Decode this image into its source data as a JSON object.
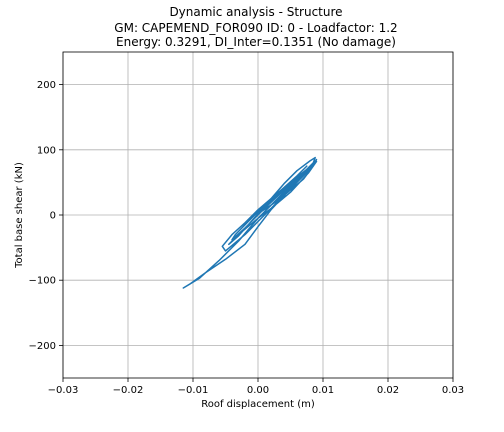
{
  "chart_data": {
    "type": "line",
    "title_lines": [
      "Dynamic analysis - Structure",
      "GM: CAPEMEND_FOR090 ID: 0 -  Loadfactor: 1.2",
      "Energy: 0.3291, DI_Inter=0.1351 (No damage)"
    ],
    "xlabel": "Roof displacement (m)",
    "ylabel": "Total base shear (kN)",
    "xlim": [
      -0.03,
      0.03
    ],
    "ylim": [
      -250,
      250
    ],
    "xticks": [
      -0.03,
      -0.02,
      -0.01,
      0.0,
      0.01,
      0.02,
      0.03
    ],
    "xtick_labels": [
      "−0.03",
      "−0.02",
      "−0.01",
      "0.00",
      "0.01",
      "0.02",
      "0.03"
    ],
    "yticks": [
      -200,
      -100,
      0,
      100,
      200
    ],
    "ytick_labels": [
      "−200",
      "−100",
      "0",
      "100",
      "200"
    ],
    "grid": true,
    "color": "#1f77b4",
    "series": [
      {
        "x": [
          0.0,
          0.002,
          0.004,
          0.006,
          0.008,
          0.0088,
          0.0085,
          0.006,
          0.003,
          0.0,
          -0.003,
          -0.006,
          -0.009,
          -0.0115,
          -0.0105,
          -0.008,
          -0.005,
          -0.002,
          0.0,
          0.002,
          0.005,
          0.008,
          0.009,
          0.0085,
          0.007,
          0.004,
          0.001,
          -0.002,
          -0.005,
          -0.0055,
          -0.004,
          -0.002,
          0.0,
          0.002,
          0.004,
          0.006,
          0.0075,
          0.0065,
          0.004,
          0.001,
          -0.002,
          -0.004,
          -0.0035,
          -0.002,
          0.0,
          0.002,
          0.004,
          0.006,
          0.0085,
          0.009,
          0.0078,
          0.005,
          0.002,
          0.0,
          -0.003,
          -0.0045,
          -0.003,
          0.0,
          0.003,
          0.006,
          0.0085,
          0.006,
          0.003,
          0.0
        ],
        "y": [
          5,
          25,
          48,
          68,
          83,
          88,
          80,
          55,
          25,
          -5,
          -40,
          -70,
          -97,
          -112,
          -106,
          -88,
          -68,
          -45,
          -18,
          8,
          40,
          70,
          85,
          75,
          55,
          30,
          0,
          -30,
          -55,
          -48,
          -30,
          -12,
          8,
          25,
          42,
          60,
          75,
          65,
          38,
          10,
          -20,
          -38,
          -30,
          -15,
          5,
          22,
          40,
          58,
          78,
          82,
          65,
          35,
          10,
          -5,
          -30,
          -45,
          -32,
          2,
          30,
          55,
          78,
          52,
          22,
          2
        ]
      }
    ]
  }
}
